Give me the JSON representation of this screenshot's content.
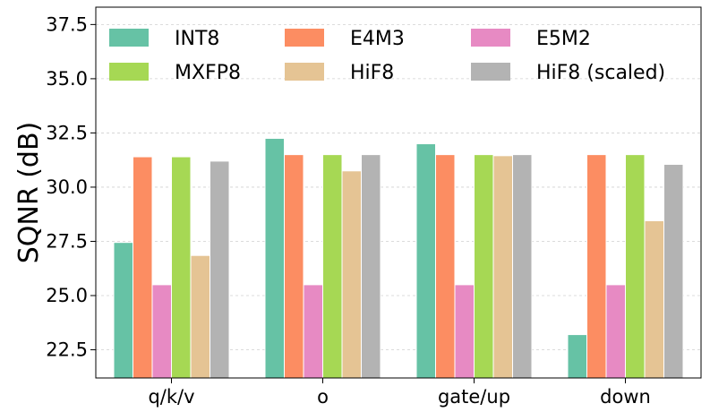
{
  "chart_data": {
    "type": "bar",
    "title": "",
    "xlabel": "",
    "ylabel": "SQNR (dB)",
    "ylim": [
      21.2,
      38.3
    ],
    "yticks": [
      "22.5",
      "25.0",
      "27.5",
      "30.0",
      "32.5",
      "35.0",
      "37.5"
    ],
    "grid": true,
    "legend_position": "top",
    "categories": [
      "q/k/v",
      "o",
      "gate/up",
      "down"
    ],
    "series": [
      {
        "name": "INT8",
        "color": "#66c2a5",
        "values": [
          27.45,
          32.25,
          32.0,
          23.2
        ]
      },
      {
        "name": "E4M3",
        "color": "#fc8d62",
        "values": [
          31.4,
          31.5,
          31.5,
          31.5
        ]
      },
      {
        "name": "E5M2",
        "color": "#e78ac3",
        "values": [
          25.5,
          25.5,
          25.5,
          25.5
        ]
      },
      {
        "name": "MXFP8",
        "color": "#a6d854",
        "values": [
          31.4,
          31.5,
          31.5,
          31.5
        ]
      },
      {
        "name": "HiF8",
        "color": "#e5c494",
        "values": [
          26.85,
          30.75,
          31.45,
          28.45
        ]
      },
      {
        "name": "HiF8 (scaled)",
        "color": "#b3b3b3",
        "values": [
          31.2,
          31.5,
          31.5,
          31.05
        ]
      }
    ]
  }
}
